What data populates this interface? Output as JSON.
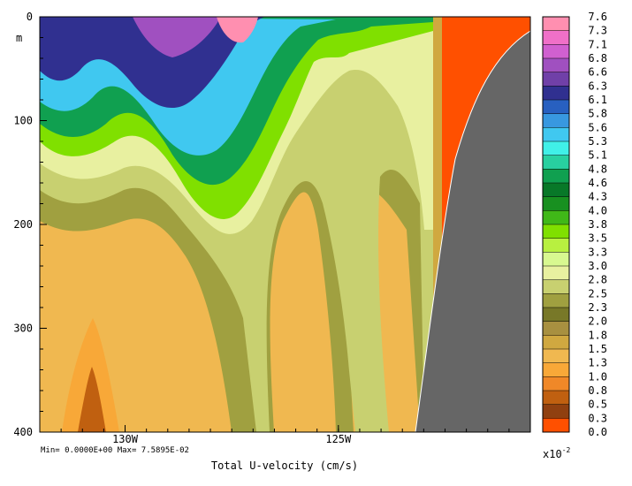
{
  "chart_data": {
    "type": "heatmap",
    "title": "",
    "xlabel": "Total U-velocity (cm/s)",
    "ylabel": "m",
    "x_ticks": [
      "130W",
      "125W"
    ],
    "y_ticks": [
      "0",
      "100",
      "200",
      "300",
      "400"
    ],
    "y_unit": "m",
    "xlim": [
      "132W",
      "120.5W"
    ],
    "ylim": [
      0,
      400
    ],
    "stats": "Min= 0.0000E+00  Max= 7.5895E-02",
    "colorbar": {
      "scale_label": "x10",
      "scale_exponent": "-2",
      "ticks": [
        "7.6",
        "7.3",
        "7.1",
        "6.8",
        "6.6",
        "6.3",
        "6.1",
        "5.8",
        "5.6",
        "5.3",
        "5.1",
        "4.8",
        "4.6",
        "4.3",
        "4.0",
        "3.8",
        "3.5",
        "3.3",
        "3.0",
        "2.8",
        "2.5",
        "2.3",
        "2.0",
        "1.8",
        "1.5",
        "1.3",
        "1.0",
        "0.8",
        "0.5",
        "0.3",
        "0.0"
      ],
      "colors": [
        "#ff8fb0",
        "#f070c8",
        "#d060d0",
        "#a050c0",
        "#7040a8",
        "#303090",
        "#2860c0",
        "#3898e0",
        "#40c8f0",
        "#40f0e8",
        "#28d0a0",
        "#10a050",
        "#087828",
        "#189020",
        "#40b818",
        "#80e000",
        "#b8f040",
        "#d8f890",
        "#e8f0a0",
        "#c8d070",
        "#a0a040",
        "#787828",
        "#a89040",
        "#d0a840",
        "#f0b850",
        "#f8a838",
        "#f08828",
        "#c06010",
        "#904010",
        "#ff5000"
      ],
      "lowest_color": "#ff5000",
      "land_color": "#666666"
    }
  }
}
